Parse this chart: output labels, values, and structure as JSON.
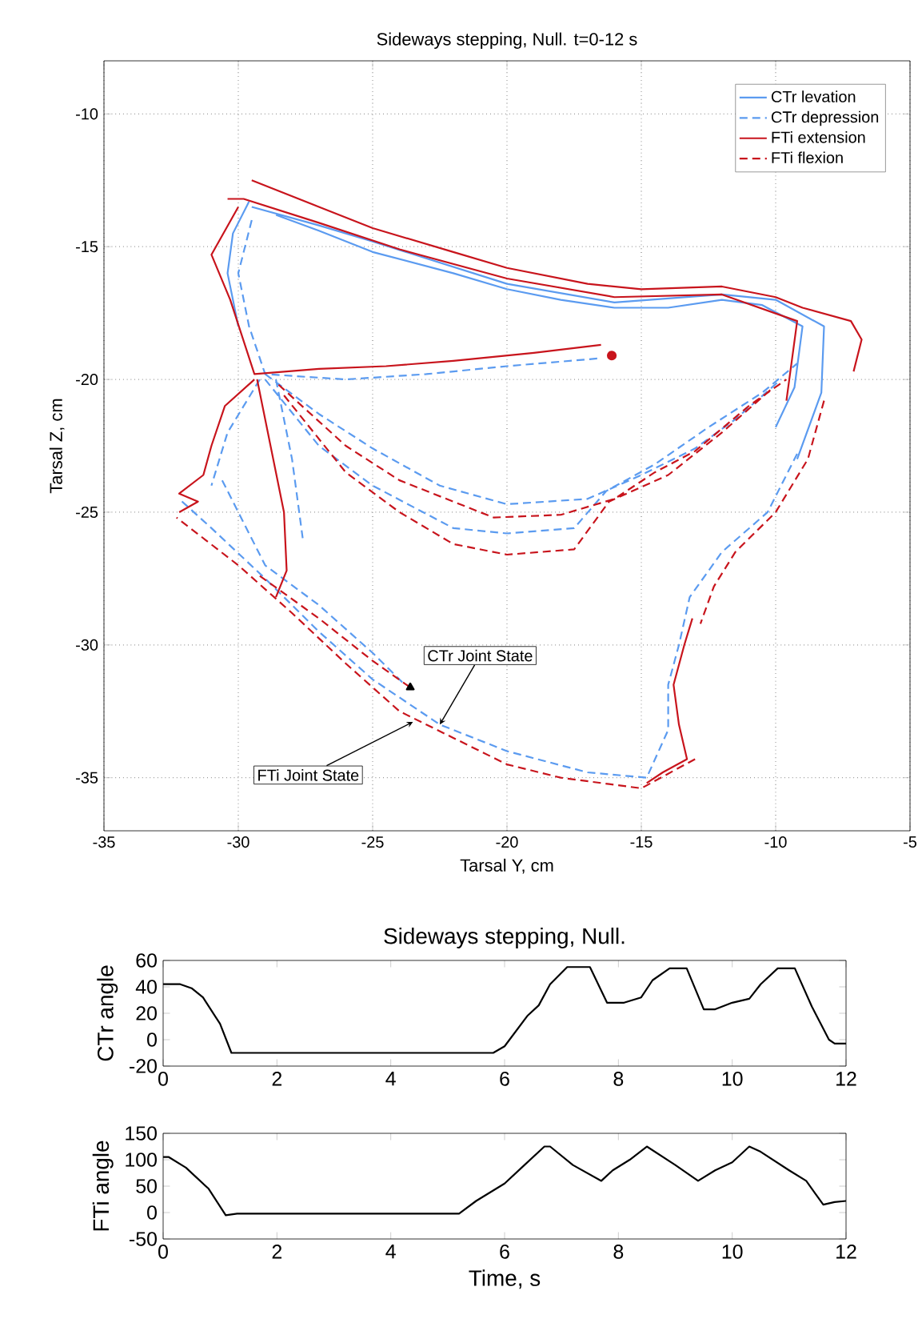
{
  "chart_data": [
    {
      "type": "line",
      "title": "Sideways stepping, Null. t=0-12 s",
      "xlabel": "Tarsal Y, cm",
      "ylabel": "Tarsal Z, cm",
      "xlim": [
        -35,
        -5
      ],
      "ylim": [
        -37,
        -8
      ],
      "xticks": [
        -35,
        -30,
        -25,
        -20,
        -15,
        -10,
        -5
      ],
      "yticks": [
        -35,
        -30,
        -25,
        -20,
        -15,
        -10
      ],
      "grid": true,
      "legend": "top right",
      "annotations": [
        {
          "text": "CTr Joint State",
          "x": -22.5,
          "y": -33
        },
        {
          "text": "FTi Joint State",
          "x": -23.5,
          "y": -32.9
        }
      ],
      "series": [
        {
          "name": "CTr levation",
          "color": "#5b9bf0",
          "line_style": "solid",
          "x": [
            -28.6,
            -27,
            -25,
            -22,
            -20,
            -18,
            -16,
            -14,
            -12,
            -10.5,
            -9,
            -9.3,
            -10,
            null,
            -29.5,
            -27,
            -25,
            -20,
            -16,
            -12,
            -10,
            -8.2,
            -8.3,
            -9.2,
            null,
            -29.6,
            -30.2,
            -30.4,
            -30
          ],
          "values": [
            -13.8,
            -14.4,
            -15.2,
            -16.0,
            -16.6,
            -17.0,
            -17.3,
            -17.3,
            -17.0,
            -17.2,
            -18.0,
            -20.3,
            -21.8,
            null,
            -13.5,
            -14.2,
            -14.8,
            -16.4,
            -17.1,
            -16.8,
            -17.0,
            -18.0,
            -20.5,
            -23.0,
            null,
            -13.3,
            -14.5,
            -16,
            -18
          ]
        },
        {
          "name": "CTr depression",
          "color": "#5b9bf0",
          "line_style": "dashed",
          "x": [
            -29.5,
            -30,
            -29.6,
            -29,
            -26,
            -23,
            -20,
            -16.5,
            null,
            -29,
            -27,
            -25,
            -22.5,
            -20,
            -17,
            -15,
            -13,
            -11.5,
            -9.8,
            null,
            -29,
            -27,
            -25,
            -22,
            -20,
            -17.5,
            -16.3,
            -14.5,
            -12.5,
            -10.5,
            -9.2,
            null,
            -9.2,
            -10.3,
            -12,
            -13.2,
            -13.6,
            -14,
            -14,
            -14.8,
            -17,
            -20,
            -22.5,
            -25,
            -27,
            -29,
            -31,
            -32.2,
            null,
            -30.6,
            -29,
            -27,
            -25,
            -23.8,
            null,
            -29.2,
            -30.4,
            -31,
            null,
            -28.6,
            -28,
            -27.6
          ],
          "values": [
            -14.0,
            -16,
            -18,
            -19.8,
            -20,
            -19.8,
            -19.5,
            -19.2,
            null,
            -19.8,
            -21.3,
            -22.6,
            -24.0,
            -24.7,
            -24.5,
            -23.6,
            -22.6,
            -21.5,
            -20.0,
            null,
            -20,
            -22.5,
            -24.0,
            -25.6,
            -25.8,
            -25.6,
            -24.2,
            -23.2,
            -21.8,
            -20.5,
            -19.4,
            null,
            -22.8,
            -25,
            -26.5,
            -28.2,
            -30,
            -31.5,
            -33.2,
            -35,
            -34.8,
            -34,
            -33,
            -31.3,
            -29.5,
            -27.5,
            -25.6,
            -24.5,
            null,
            -23.8,
            -27,
            -28.5,
            -30.3,
            -31.5,
            null,
            -20,
            -22,
            -24,
            null,
            -20,
            -23,
            -26
          ]
        },
        {
          "name": "FTi extension",
          "color": "#c8141c",
          "line_style": "solid",
          "x": [
            -29.5,
            -27,
            -25,
            -22,
            -20,
            -17,
            -15,
            -12,
            -10,
            -9,
            -7.2,
            -6.8,
            -7.1,
            null,
            -30.4,
            -29.8,
            -27,
            -24,
            -20,
            -16,
            -12,
            -9.2,
            -9.6,
            null,
            -30,
            -31,
            -30.3,
            -29.4,
            -27,
            -24.5,
            -22,
            -19,
            -16.5,
            null,
            -29.4,
            -30.5,
            -31,
            -31.3,
            -32.2,
            -31.5,
            -32.2,
            null,
            -29.3,
            -28.8,
            -28.3,
            -28.2,
            -28.6,
            null,
            -13.1,
            -13.4,
            -13.8,
            -13.6,
            -13.3,
            -14.2,
            -14.8
          ],
          "values": [
            -12.5,
            -13.5,
            -14.3,
            -15.2,
            -15.8,
            -16.4,
            -16.6,
            -16.5,
            -16.9,
            -17.3,
            -17.8,
            -18.5,
            -19.7,
            null,
            -13.2,
            -13.2,
            -14.1,
            -15.1,
            -16.2,
            -16.9,
            -16.8,
            -17.8,
            -20.8,
            null,
            -13.5,
            -15.3,
            -17,
            -19.8,
            -19.6,
            -19.5,
            -19.3,
            -19.0,
            -18.7,
            null,
            -20,
            -21,
            -22.5,
            -23.6,
            -24.3,
            -24.6,
            -25,
            null,
            -20,
            -22.5,
            -25,
            -27.2,
            -28.2,
            null,
            -29,
            -30,
            -31.5,
            -33,
            -34.3,
            -34.8,
            -35.2
          ]
        },
        {
          "name": "FTi flexion",
          "color": "#c8141c",
          "line_style": "dashed",
          "x": [
            -28.5,
            -26,
            -24,
            -20.5,
            -18,
            -16,
            -14.5,
            -13,
            -11,
            -9.6,
            null,
            -28.3,
            -26,
            -24,
            -22,
            -20,
            -17.5,
            -16.2,
            -14,
            -12,
            -10.2,
            null,
            -8.2,
            -8.8,
            -10,
            -11.5,
            -12.3,
            -12.8,
            null,
            -13,
            -15,
            -18,
            -20,
            -22,
            -24,
            -26,
            -28,
            -30,
            -32.3,
            null,
            -29.2,
            -27,
            -25,
            -23.6
          ],
          "values": [
            -20.2,
            -22.5,
            -23.8,
            -25.2,
            -25.1,
            -24.5,
            -23.5,
            -22.7,
            -21.0,
            -20.0,
            null,
            -20.6,
            -23.5,
            -25,
            -26.2,
            -26.6,
            -26.4,
            -24.6,
            -23.6,
            -22.0,
            -20.4,
            null,
            -20.8,
            -23,
            -25,
            -26.5,
            -27.8,
            -29.2,
            null,
            -34.3,
            -35.4,
            -35,
            -34.5,
            -33.5,
            -32.5,
            -30.7,
            -28.8,
            -27,
            -25.2,
            null,
            -27.4,
            -29,
            -30.6,
            -31.6
          ]
        },
        {
          "type": "scatter",
          "marker": "circle",
          "color": "#c8141c",
          "x": [
            -16.1
          ],
          "values": [
            -19.1
          ]
        },
        {
          "type": "scatter",
          "marker": "triangle",
          "color": "#000000",
          "x": [
            -23.6
          ],
          "values": [
            -31.6
          ]
        }
      ]
    },
    {
      "type": "line",
      "title": "Sideways stepping, Null.",
      "ylabel": "CTr angle",
      "xlim": [
        0,
        12
      ],
      "ylim": [
        -20,
        60
      ],
      "xticks": [
        0,
        2,
        4,
        6,
        8,
        10,
        12
      ],
      "yticks": [
        -20,
        0,
        20,
        40,
        60
      ],
      "series": [
        {
          "color": "#000000",
          "line_style": "solid",
          "x": [
            0,
            0.3,
            0.5,
            0.7,
            1.0,
            1.2,
            5.8,
            6.0,
            6.4,
            6.6,
            6.8,
            7.1,
            7.5,
            7.8,
            8.1,
            8.4,
            8.6,
            8.9,
            9.2,
            9.5,
            9.7,
            10.0,
            10.3,
            10.5,
            10.8,
            11.1,
            11.4,
            11.7,
            11.8,
            12
          ],
          "values": [
            42,
            42,
            39,
            32,
            12,
            -10,
            -10,
            -5,
            18,
            26,
            42,
            55,
            55,
            28,
            28,
            32,
            45,
            54,
            54,
            23,
            23,
            28,
            31,
            42,
            54,
            54,
            25,
            0,
            -3,
            -3
          ]
        }
      ]
    },
    {
      "type": "line",
      "xlabel": "Time, s",
      "ylabel": "FTi angle",
      "xlim": [
        0,
        12
      ],
      "ylim": [
        -50,
        150
      ],
      "xticks": [
        0,
        2,
        4,
        6,
        8,
        10,
        12
      ],
      "yticks": [
        -50,
        0,
        50,
        100,
        150
      ],
      "series": [
        {
          "color": "#000000",
          "line_style": "solid",
          "x": [
            0,
            0.1,
            0.4,
            0.8,
            1.1,
            1.3,
            5.2,
            5.5,
            6.0,
            6.3,
            6.7,
            6.8,
            7.2,
            7.7,
            7.9,
            8.2,
            8.5,
            9.0,
            9.4,
            9.7,
            10.0,
            10.3,
            10.5,
            11.0,
            11.3,
            11.6,
            11.8,
            12
          ],
          "values": [
            105,
            105,
            85,
            45,
            -5,
            -2,
            -2,
            22,
            55,
            85,
            125,
            125,
            90,
            60,
            80,
            100,
            125,
            90,
            60,
            80,
            95,
            125,
            115,
            80,
            60,
            15,
            20,
            22
          ]
        }
      ]
    }
  ]
}
